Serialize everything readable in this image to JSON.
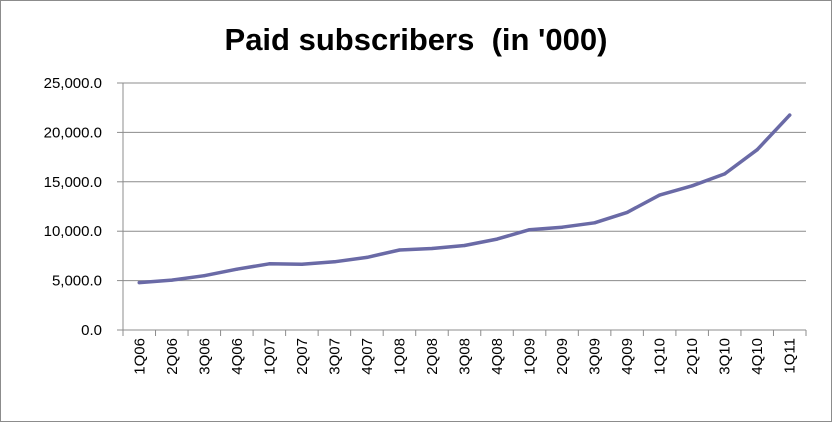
{
  "chart_data": {
    "type": "line",
    "title": "Paid subscribers  (in '000)",
    "categories": [
      "1Q06",
      "2Q06",
      "3Q06",
      "4Q06",
      "1Q07",
      "2Q07",
      "3Q07",
      "4Q07",
      "1Q08",
      "2Q08",
      "3Q08",
      "4Q08",
      "1Q09",
      "2Q09",
      "3Q09",
      "4Q09",
      "1Q10",
      "2Q10",
      "3Q10",
      "4Q10",
      "1Q11"
    ],
    "series": [
      {
        "values": [
          4800,
          5050,
          5500,
          6150,
          6700,
          6650,
          6900,
          7350,
          8100,
          8250,
          8550,
          9200,
          10150,
          10400,
          10850,
          11900,
          13650,
          14600,
          15800,
          18250,
          21750
        ],
        "color": "#6a6aa6"
      }
    ],
    "y_ticks": [
      "0.0",
      "5,000.0",
      "10,000.0",
      "15,000.0",
      "20,000.0",
      "25,000.0"
    ],
    "ylim": [
      0,
      25000
    ],
    "grid": true,
    "legend": "none"
  }
}
